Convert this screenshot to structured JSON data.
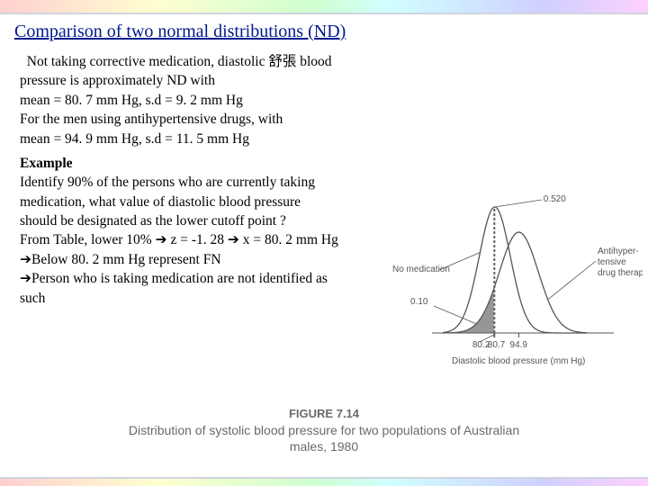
{
  "title": "Comparison of two normal distributions (ND)",
  "para1": {
    "l1": "  Not taking corrective medication, diastolic 舒張 blood",
    "l2": "pressure is approximately ND with",
    "l3": "mean = 80. 7 mm Hg, s.d = 9. 2 mm Hg",
    "l4": "For the men using antihypertensive drugs, with",
    "l5": "mean = 94. 9 mm Hg, s.d = 11. 5 mm Hg"
  },
  "example": {
    "label": "Example",
    "l1": "Identify 90% of the persons who are currently taking",
    "l2": "medication, what value of diastolic blood pressure",
    "l3": "should be designated as the lower cutoff point ?",
    "l4a": "From Table, lower 10% ",
    "l4b": " z = -1. 28 ",
    "l4c": " x = 80. 2 mm Hg",
    "l5": "Below 80. 2 mm Hg represent FN",
    "l6": "Person who is taking medication are not identified as",
    "l7": "such"
  },
  "chart": {
    "curve1": {
      "mean": 80.7,
      "sd": 9.2,
      "stroke": "#555555",
      "fill_left_color": "#959697"
    },
    "curve2": {
      "mean": 94.9,
      "sd": 11.5,
      "stroke": "#555555"
    },
    "xmin": 50,
    "xmax": 135,
    "cutoff_x": 80.2,
    "axis_color": "#555555",
    "label_color": "#555555",
    "label_left": "No medication",
    "label_right_l1": "Antihyper-",
    "label_right_l2": "tensive",
    "label_right_l3": "drug therapy",
    "peak_value": "0.520",
    "left_tail_value": "0.10",
    "xticks": [
      "80.2",
      "80.7",
      "94.9"
    ],
    "xlabel": "Diastolic blood pressure (mm Hg)",
    "fontsize": 10
  },
  "caption": {
    "label": "FIGURE 7.14",
    "l1": "Distribution of systolic blood pressure for two populations of Australian",
    "l2": "males, 1980"
  },
  "arrow_glyph": "➔"
}
